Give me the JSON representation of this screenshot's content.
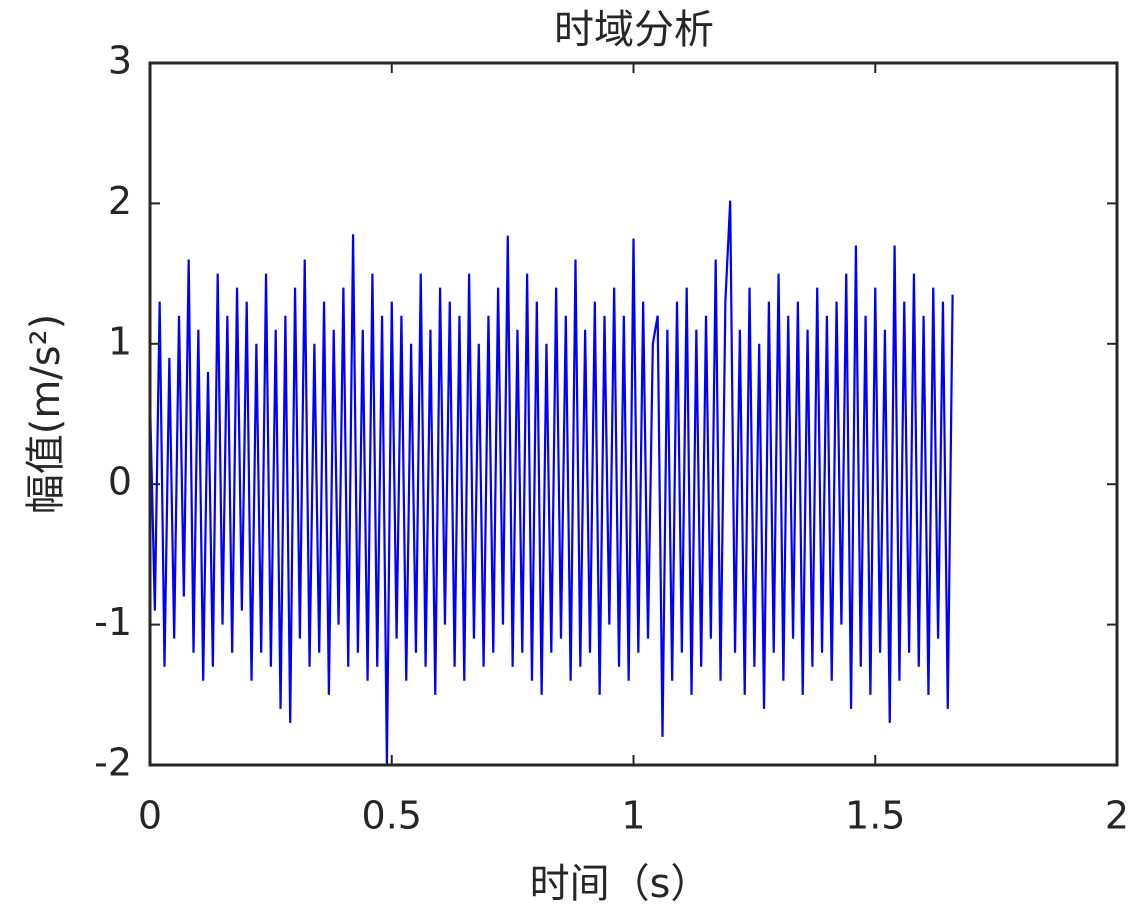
{
  "chart_data": {
    "type": "line",
    "title": "时域分析",
    "xlabel": "时间（s）",
    "ylabel": "幅值(m/s²)",
    "xlim": [
      0,
      2
    ],
    "xticks": [
      0,
      0.5,
      1,
      1.5,
      2
    ],
    "ylim": [
      -2,
      3
    ],
    "yticks": [
      -2,
      -1,
      0,
      1,
      2,
      3
    ],
    "grid": false,
    "x": [
      0,
      0.01,
      0.02,
      0.03,
      0.04,
      0.05,
      0.06,
      0.07,
      0.08,
      0.09,
      0.1,
      0.11,
      0.12,
      0.13,
      0.14,
      0.15,
      0.16,
      0.17,
      0.18,
      0.19,
      0.2,
      0.21,
      0.22,
      0.23,
      0.24,
      0.25,
      0.26,
      0.27,
      0.28,
      0.29,
      0.3,
      0.31,
      0.32,
      0.33,
      0.34,
      0.35,
      0.36,
      0.37,
      0.38,
      0.39,
      0.4,
      0.41,
      0.42,
      0.43,
      0.44,
      0.45,
      0.46,
      0.47,
      0.48,
      0.49,
      0.5,
      0.51,
      0.52,
      0.53,
      0.54,
      0.55,
      0.56,
      0.57,
      0.58,
      0.59,
      0.6,
      0.61,
      0.62,
      0.63,
      0.64,
      0.65,
      0.66,
      0.67,
      0.68,
      0.69,
      0.7,
      0.71,
      0.72,
      0.73,
      0.74,
      0.75,
      0.76,
      0.77,
      0.78,
      0.79,
      0.8,
      0.81,
      0.82,
      0.83,
      0.84,
      0.85,
      0.86,
      0.87,
      0.88,
      0.89,
      0.9,
      0.91,
      0.92,
      0.93,
      0.94,
      0.95,
      0.96,
      0.97,
      0.98,
      0.99,
      1,
      1.01,
      1.02,
      1.03,
      1.04,
      1.05,
      1.06,
      1.07,
      1.08,
      1.09,
      1.1,
      1.11,
      1.12,
      1.13,
      1.14,
      1.15,
      1.16,
      1.17,
      1.18,
      1.19,
      1.2,
      1.21,
      1.22,
      1.23,
      1.24,
      1.25,
      1.26,
      1.27,
      1.28,
      1.29,
      1.3,
      1.31,
      1.32,
      1.33,
      1.34,
      1.35,
      1.36,
      1.37,
      1.38,
      1.39,
      1.4,
      1.41,
      1.42,
      1.43,
      1.44,
      1.45,
      1.46,
      1.47,
      1.48,
      1.49,
      1.5,
      1.51,
      1.52,
      1.53,
      1.54,
      1.55,
      1.56,
      1.57,
      1.58,
      1.59,
      1.6,
      1.61,
      1.62,
      1.63,
      1.64,
      1.65,
      1.66
    ],
    "series": [
      {
        "color": "#0000ff",
        "values": [
          0.6,
          -0.9,
          1.3,
          -1.3,
          0.9,
          -1.1,
          1.2,
          -0.8,
          1.6,
          -1.2,
          1.1,
          -1.4,
          0.8,
          -1.3,
          1.5,
          -1.0,
          1.2,
          -1.2,
          1.4,
          -0.9,
          1.3,
          -1.4,
          1.0,
          -1.2,
          1.5,
          -1.3,
          1.1,
          -1.6,
          1.2,
          -1.7,
          1.4,
          -1.1,
          1.6,
          -1.3,
          1.0,
          -1.2,
          1.3,
          -1.5,
          1.1,
          -1.0,
          1.4,
          -1.3,
          1.78,
          -1.2,
          1.1,
          -1.4,
          1.5,
          -1.3,
          1.2,
          -2.0,
          1.3,
          -1.1,
          1.2,
          -1.4,
          1.0,
          -1.2,
          1.5,
          -1.3,
          1.1,
          -1.5,
          1.4,
          -1.0,
          1.3,
          -1.3,
          1.2,
          -1.4,
          1.5,
          -1.1,
          1.0,
          -1.3,
          1.2,
          -1.2,
          1.4,
          -1.0,
          1.77,
          -1.3,
          1.1,
          -1.2,
          1.5,
          -1.4,
          1.3,
          -1.5,
          1.0,
          -1.2,
          1.4,
          -1.1,
          1.2,
          -1.4,
          1.6,
          -1.3,
          1.1,
          -1.2,
          1.3,
          -1.5,
          1.2,
          -1.0,
          1.4,
          -1.3,
          1.2,
          -1.4,
          1.75,
          -1.2,
          1.3,
          -1.1,
          1.0,
          1.2,
          -1.8,
          1.1,
          -1.4,
          1.3,
          -1.2,
          1.4,
          -1.5,
          1.1,
          -1.3,
          1.2,
          -1.1,
          1.6,
          -1.4,
          1.3,
          2.02,
          -1.2,
          1.1,
          -1.5,
          1.4,
          -1.3,
          1.0,
          -1.6,
          1.3,
          -1.2,
          1.5,
          -1.4,
          1.2,
          -1.1,
          1.3,
          -1.5,
          1.1,
          -1.3,
          1.4,
          -1.2,
          1.2,
          -1.4,
          1.3,
          -1.0,
          1.5,
          -1.6,
          1.7,
          -1.3,
          1.2,
          -1.5,
          1.4,
          -1.2,
          1.1,
          -1.7,
          1.7,
          -1.4,
          1.3,
          -1.2,
          1.5,
          -1.3,
          1.2,
          -1.5,
          1.4,
          -1.1,
          1.3,
          -1.6,
          1.35
        ]
      }
    ]
  }
}
